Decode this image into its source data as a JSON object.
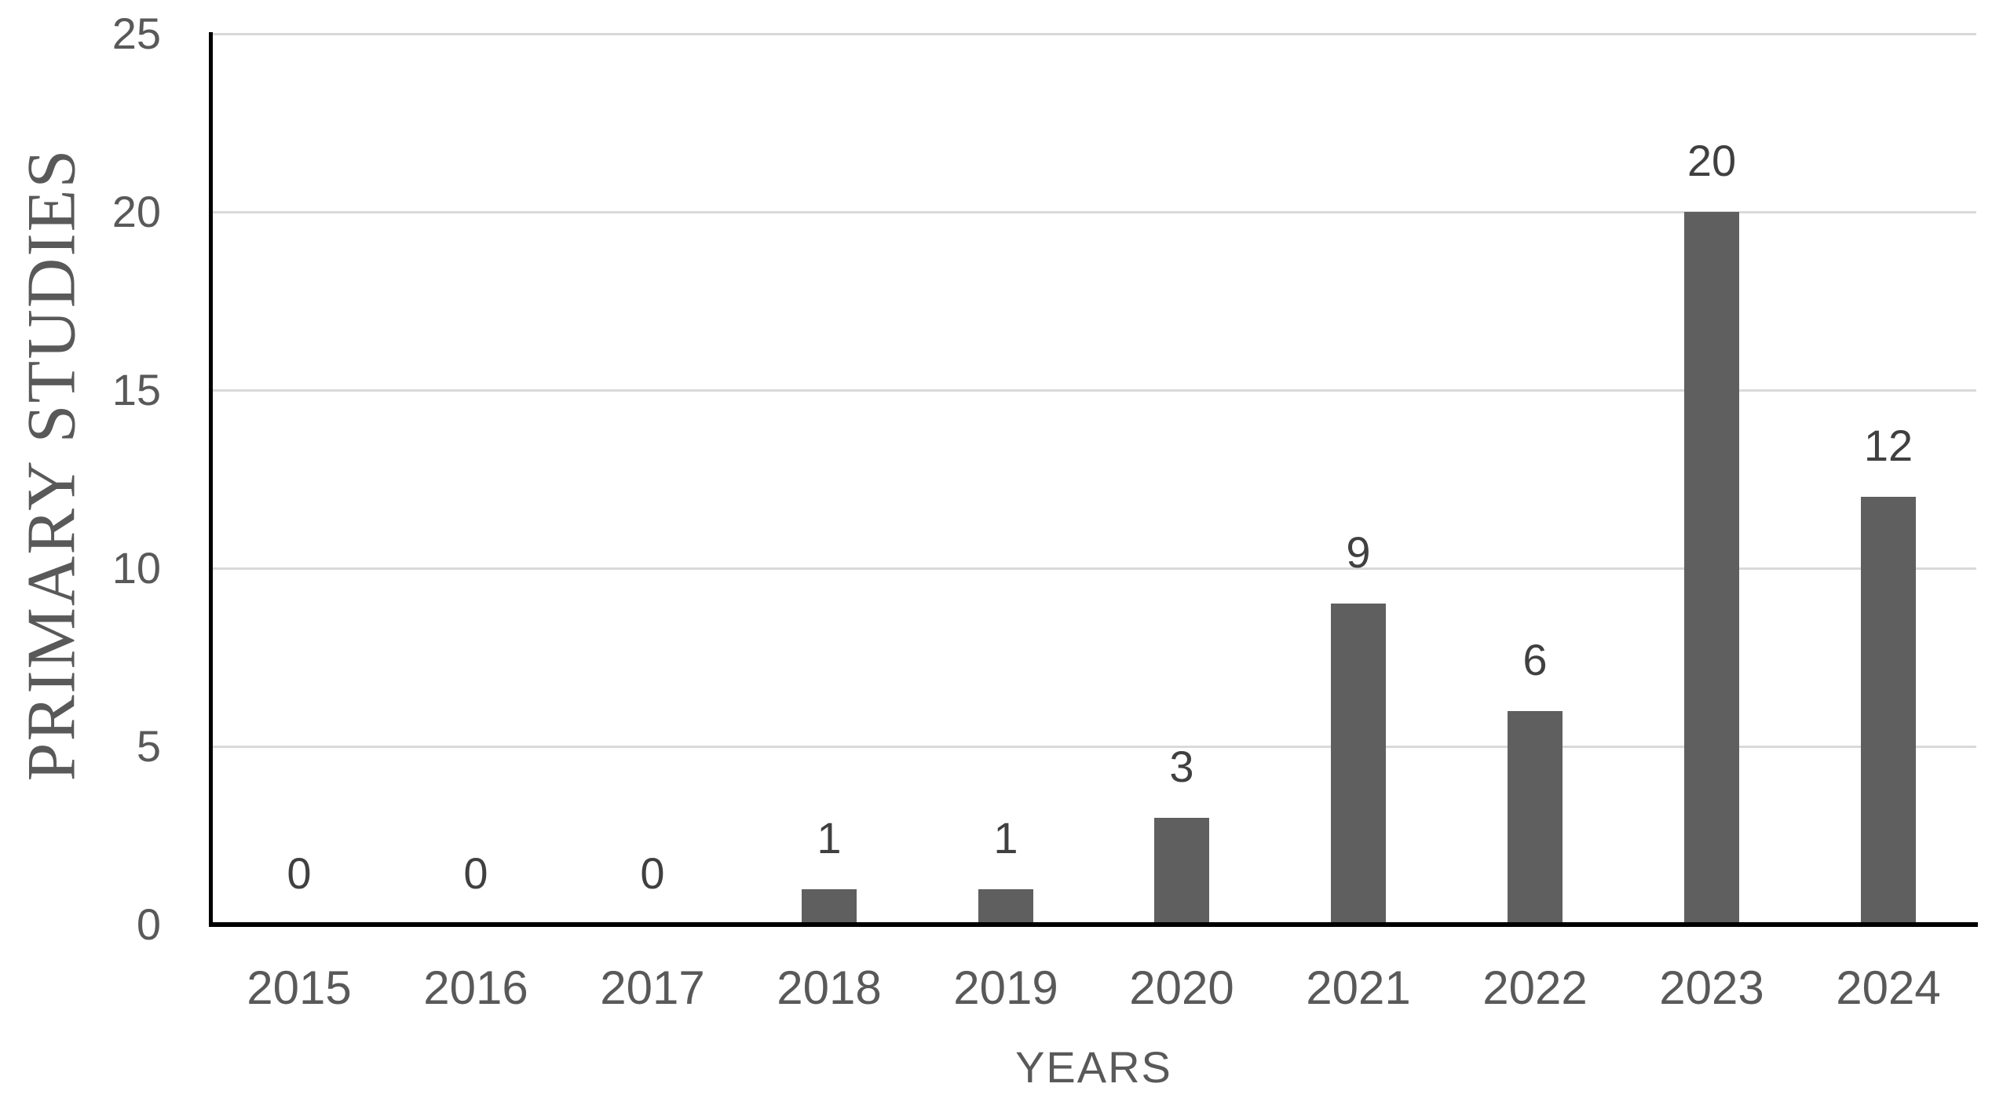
{
  "chart_data": {
    "type": "bar",
    "title": "",
    "categories": [
      "2015",
      "2016",
      "2017",
      "2018",
      "2019",
      "2020",
      "2021",
      "2022",
      "2023",
      "2024"
    ],
    "values": [
      0,
      0,
      0,
      1,
      1,
      3,
      9,
      6,
      20,
      12
    ],
    "xlabel": "YEARS",
    "ylabel": "PRIMARY STUDIES",
    "ylim": [
      0,
      25
    ],
    "yticks": [
      0,
      5,
      10,
      15,
      20,
      25
    ],
    "grid": "horizontal",
    "legend": "none",
    "data_labels": true,
    "colors": {
      "bar": "#5f5f5f",
      "gridline": "#d9d9d9",
      "axis": "#000000",
      "tick_text": "#595959",
      "title_text": "#595959",
      "data_label_text": "#404040",
      "background": "#ffffff"
    }
  }
}
